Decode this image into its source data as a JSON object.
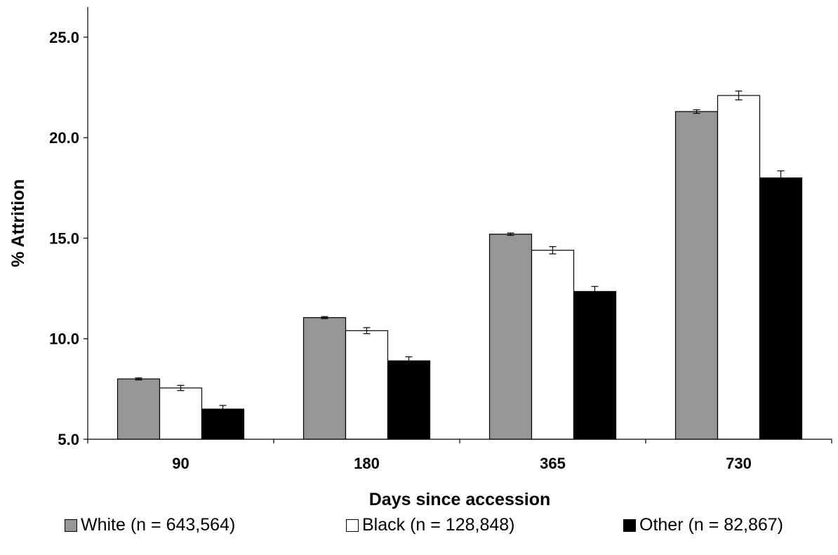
{
  "chart_data": {
    "type": "bar",
    "categories": [
      "90",
      "180",
      "365",
      "730"
    ],
    "series": [
      {
        "name": "White (n = 643,564)",
        "color": "#969696",
        "values": [
          8.0,
          11.05,
          15.2,
          21.3
        ],
        "errors": [
          0.05,
          0.05,
          0.06,
          0.09
        ]
      },
      {
        "name": "Black (n = 128,848)",
        "color": "#ffffff",
        "values": [
          7.55,
          10.4,
          14.4,
          22.1
        ],
        "errors": [
          0.13,
          0.15,
          0.18,
          0.22
        ]
      },
      {
        "name": "Other (n = 82,867)",
        "color": "#000000",
        "values": [
          6.5,
          8.9,
          12.35,
          18.0
        ],
        "errors": [
          0.18,
          0.2,
          0.25,
          0.35
        ]
      }
    ],
    "xlabel": "Days since accession",
    "ylabel": "% Attrition",
    "ylim": [
      5.0,
      26.5
    ],
    "yticks": [
      "5.0",
      "10.0",
      "15.0",
      "20.0",
      "25.0"
    ],
    "grid": false,
    "legend_position": "bottom"
  }
}
